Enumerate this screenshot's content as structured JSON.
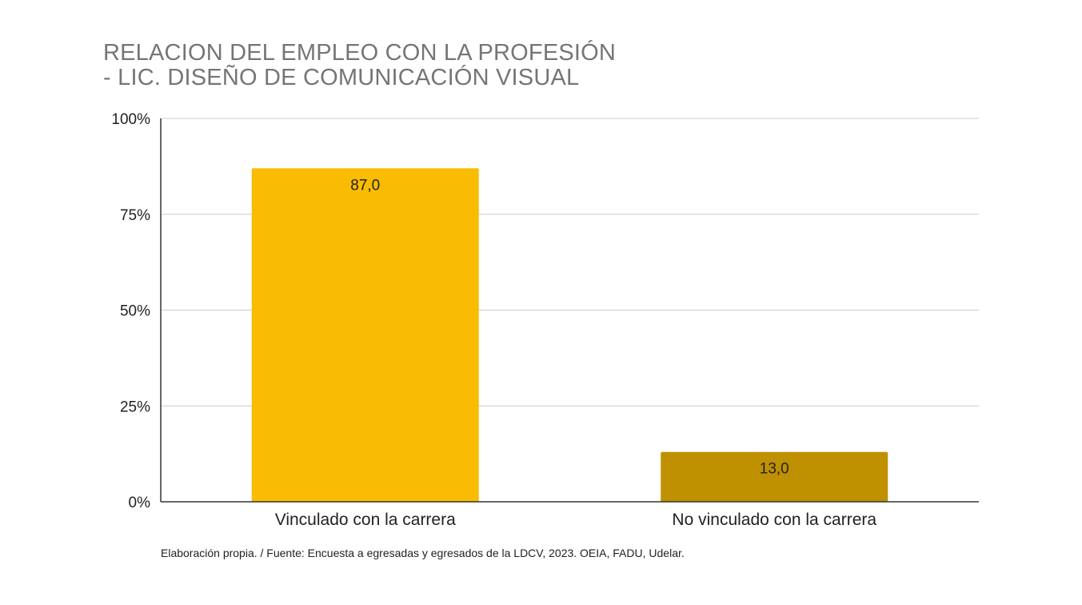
{
  "chart_data": {
    "type": "bar",
    "title_lines": [
      "RELACION DEL EMPLEO CON LA PROFESIÓN",
      "- LIC. DISEÑO DE COMUNICACIÓN VISUAL"
    ],
    "categories": [
      "Vinculado con la carrera",
      "No vinculado con la carrera"
    ],
    "values": [
      87.0,
      13.0
    ],
    "data_labels": [
      "87,0",
      "13,0"
    ],
    "bar_colors": [
      "#f9bc02",
      "#bf9000"
    ],
    "ylim": [
      0,
      100
    ],
    "yticks": [
      0,
      25,
      50,
      75,
      100
    ],
    "ytick_labels": [
      "0%",
      "25%",
      "50%",
      "75%",
      "100%"
    ],
    "grid": true,
    "legend": "none",
    "xlabel": "",
    "ylabel": ""
  },
  "source_note": "Elaboración propia. / Fuente: Encuesta a egresadas y egresados de la LDCV, 2023. OEIA, FADU, Udelar."
}
